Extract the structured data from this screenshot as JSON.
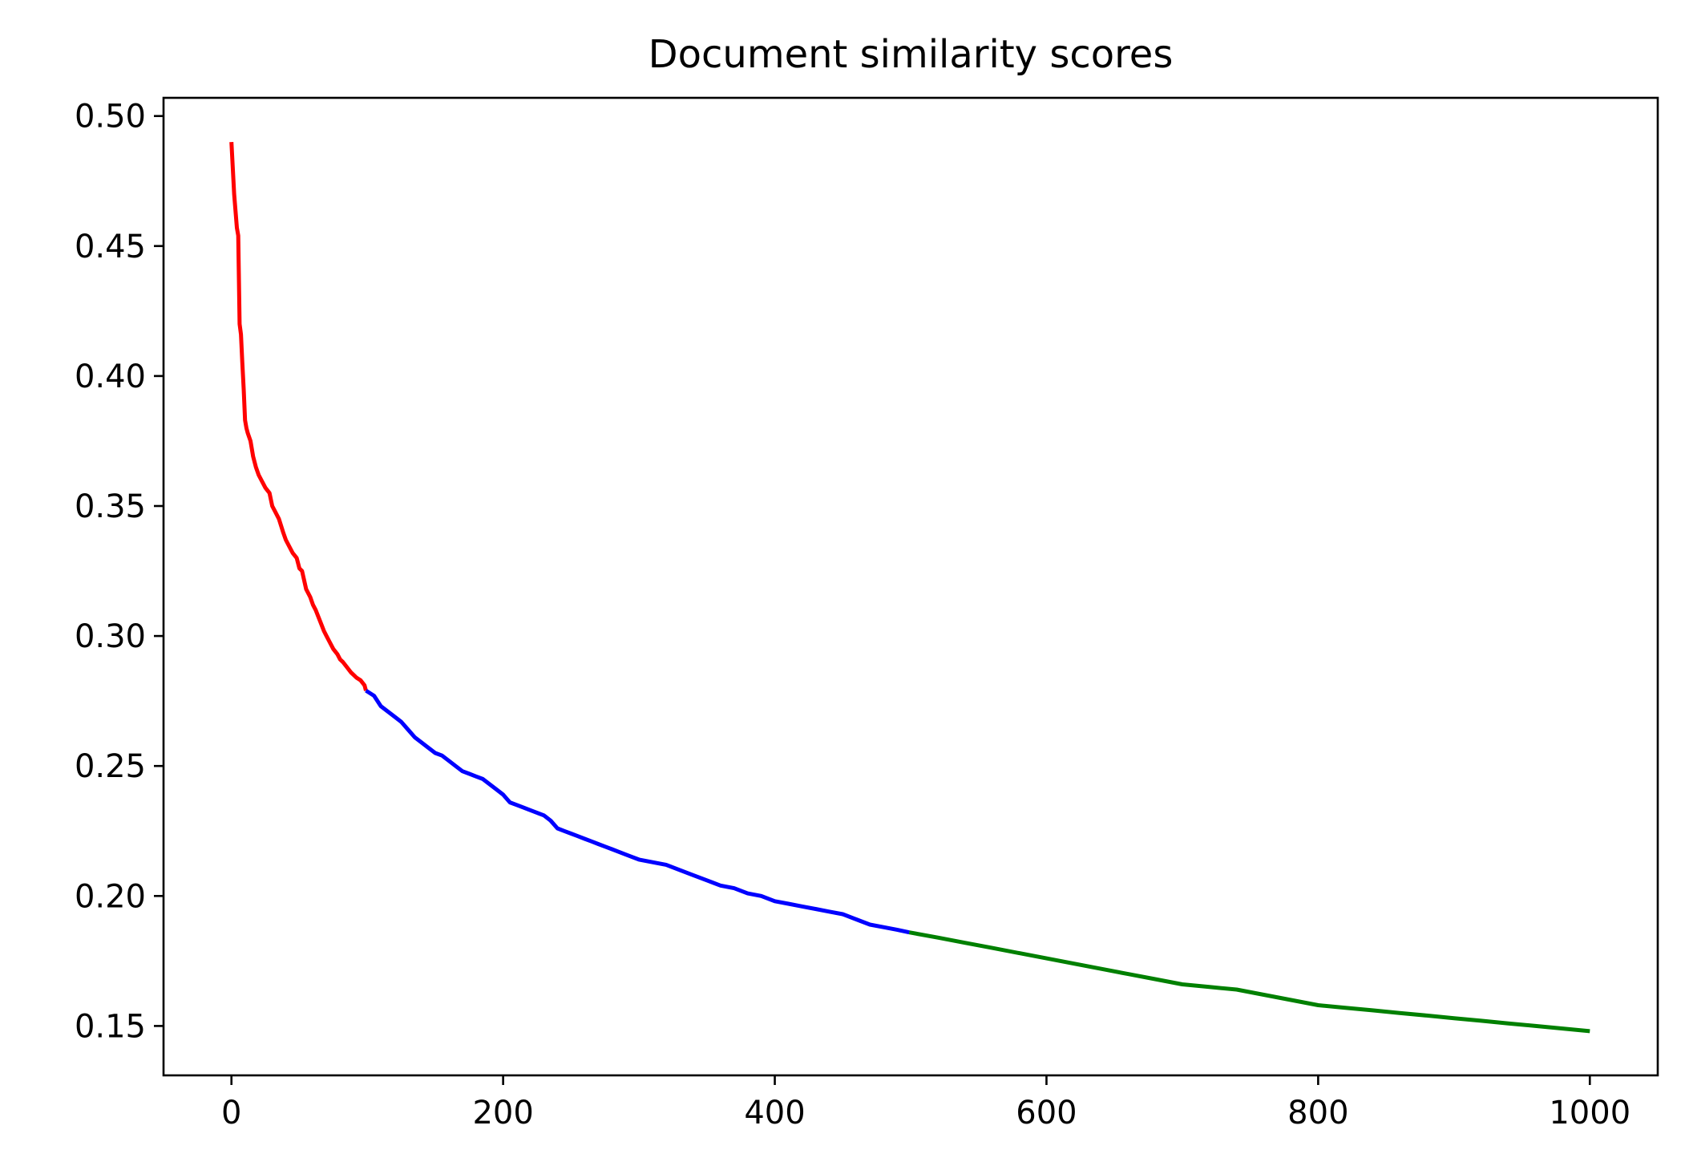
{
  "chart_data": {
    "type": "line",
    "title": "Document similarity scores",
    "xlabel": "",
    "ylabel": "",
    "xlim": [
      -50,
      1050
    ],
    "ylim": [
      0.131,
      0.507
    ],
    "xticks": [
      0,
      200,
      400,
      600,
      800,
      1000
    ],
    "xtick_labels": [
      "0",
      "200",
      "400",
      "600",
      "800",
      "1000"
    ],
    "yticks": [
      0.15,
      0.2,
      0.25,
      0.3,
      0.35,
      0.4,
      0.45,
      0.5
    ],
    "ytick_labels": [
      "0.15",
      "0.20",
      "0.25",
      "0.30",
      "0.35",
      "0.40",
      "0.45",
      "0.50"
    ],
    "grid": false,
    "legend": "none",
    "series": [
      {
        "color": "#ff0000",
        "x": [
          0,
          2,
          4,
          5,
          6,
          7,
          8,
          9,
          10,
          11,
          12,
          14,
          16,
          18,
          20,
          22,
          25,
          28,
          30,
          32,
          35,
          38,
          40,
          42,
          45,
          48,
          50,
          52,
          55,
          58,
          60,
          62,
          65,
          68,
          70,
          72,
          75,
          78,
          80,
          82,
          85,
          88,
          90,
          92,
          95,
          98,
          99
        ],
        "y": [
          0.49,
          0.47,
          0.457,
          0.454,
          0.42,
          0.416,
          0.405,
          0.395,
          0.383,
          0.38,
          0.378,
          0.375,
          0.369,
          0.365,
          0.362,
          0.36,
          0.357,
          0.355,
          0.35,
          0.348,
          0.345,
          0.34,
          0.337,
          0.335,
          0.332,
          0.33,
          0.326,
          0.325,
          0.318,
          0.315,
          0.312,
          0.31,
          0.306,
          0.302,
          0.3,
          0.298,
          0.295,
          0.293,
          0.291,
          0.29,
          0.288,
          0.286,
          0.285,
          0.284,
          0.283,
          0.281,
          0.279
        ]
      },
      {
        "color": "#0000ff",
        "x": [
          99,
          105,
          110,
          115,
          120,
          125,
          130,
          135,
          140,
          145,
          150,
          155,
          160,
          165,
          170,
          175,
          180,
          185,
          190,
          195,
          200,
          205,
          210,
          215,
          220,
          225,
          230,
          235,
          240,
          245,
          250,
          255,
          260,
          265,
          270,
          275,
          280,
          285,
          290,
          295,
          300,
          310,
          320,
          330,
          340,
          350,
          360,
          370,
          380,
          390,
          400,
          410,
          420,
          430,
          440,
          450,
          460,
          470,
          480,
          490,
          499
        ],
        "y": [
          0.279,
          0.277,
          0.273,
          0.271,
          0.269,
          0.267,
          0.264,
          0.261,
          0.259,
          0.257,
          0.255,
          0.254,
          0.252,
          0.25,
          0.248,
          0.247,
          0.246,
          0.245,
          0.243,
          0.241,
          0.239,
          0.236,
          0.235,
          0.234,
          0.233,
          0.232,
          0.231,
          0.229,
          0.226,
          0.225,
          0.224,
          0.223,
          0.222,
          0.221,
          0.22,
          0.219,
          0.218,
          0.217,
          0.216,
          0.215,
          0.214,
          0.213,
          0.212,
          0.21,
          0.208,
          0.206,
          0.204,
          0.203,
          0.201,
          0.2,
          0.198,
          0.197,
          0.196,
          0.195,
          0.194,
          0.193,
          0.191,
          0.189,
          0.188,
          0.187,
          0.186
        ]
      },
      {
        "color": "#008000",
        "x": [
          499,
          520,
          540,
          560,
          580,
          600,
          620,
          640,
          660,
          680,
          700,
          720,
          740,
          760,
          780,
          800,
          820,
          840,
          860,
          880,
          900,
          920,
          940,
          960,
          980,
          1000
        ],
        "y": [
          0.186,
          0.184,
          0.182,
          0.18,
          0.178,
          0.176,
          0.174,
          0.172,
          0.17,
          0.168,
          0.166,
          0.165,
          0.164,
          0.162,
          0.16,
          0.158,
          0.157,
          0.156,
          0.155,
          0.154,
          0.153,
          0.152,
          0.151,
          0.15,
          0.149,
          0.148
        ]
      }
    ]
  }
}
